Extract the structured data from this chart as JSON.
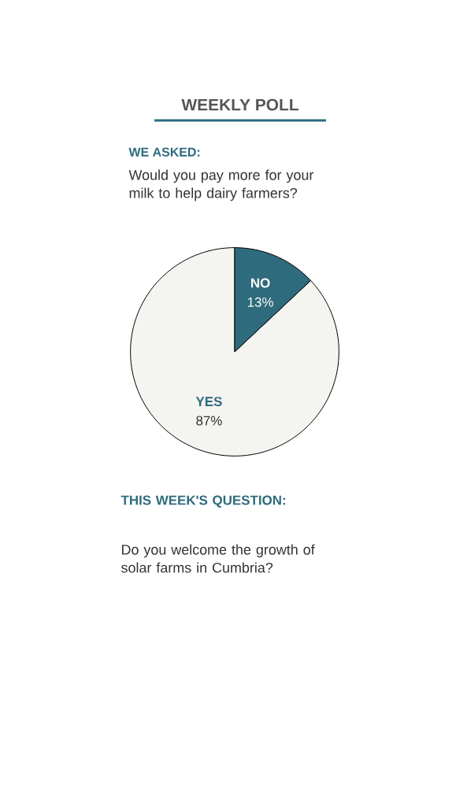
{
  "chart_data": {
    "type": "pie",
    "title": "WEEKLY POLL",
    "subtitle": "WE ASKED:",
    "annotations": [
      "Would you pay more for your milk to help dairy farmers?",
      "THIS WEEK'S QUESTION:",
      "Do you welcome the growth of solar farms in Cumbria?"
    ],
    "categories": [
      "YES",
      "NO"
    ],
    "values": [
      87,
      13
    ],
    "value_labels": [
      "87%",
      "13%"
    ],
    "colors": [
      "#f4f4f1",
      "#2e6b7c"
    ]
  }
}
